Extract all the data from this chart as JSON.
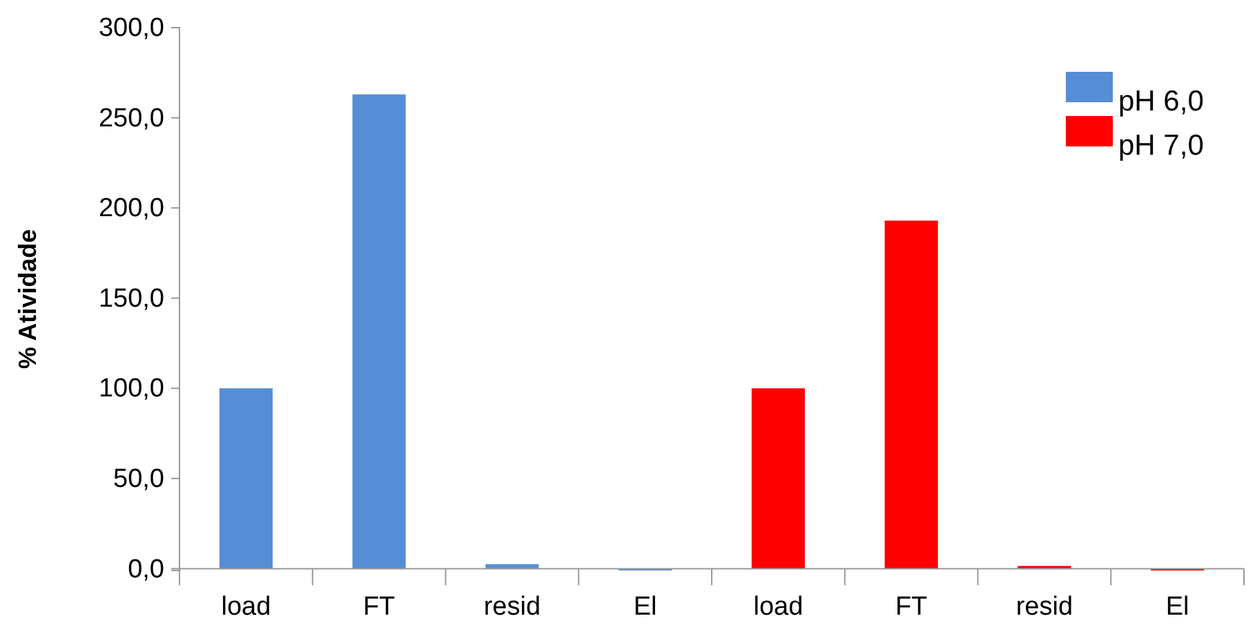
{
  "chart_data": {
    "type": "bar",
    "ylabel": "% Atividade",
    "categories": [
      "load",
      "FT",
      "resid",
      "El",
      "load",
      "FT",
      "resid",
      "El"
    ],
    "series": [
      {
        "name": "pH 6,0",
        "color": "#558ed5",
        "values": [
          100,
          263,
          2.5,
          -1,
          null,
          null,
          null,
          null
        ]
      },
      {
        "name": "pH 7,0",
        "color": "#ff0000",
        "values": [
          null,
          null,
          null,
          null,
          100,
          193,
          1.5,
          -1
        ]
      }
    ],
    "ylim": [
      -1,
      300
    ],
    "yticks": [
      {
        "value": 0,
        "label": "0,0"
      },
      {
        "value": 50,
        "label": "50,0"
      },
      {
        "value": 100,
        "label": "100,0"
      },
      {
        "value": 150,
        "label": "150,0"
      },
      {
        "value": 200,
        "label": "200,0"
      },
      {
        "value": 250,
        "label": "250,0"
      },
      {
        "value": 300,
        "label": "300,0"
      }
    ],
    "grid": false,
    "legend": "top right"
  }
}
